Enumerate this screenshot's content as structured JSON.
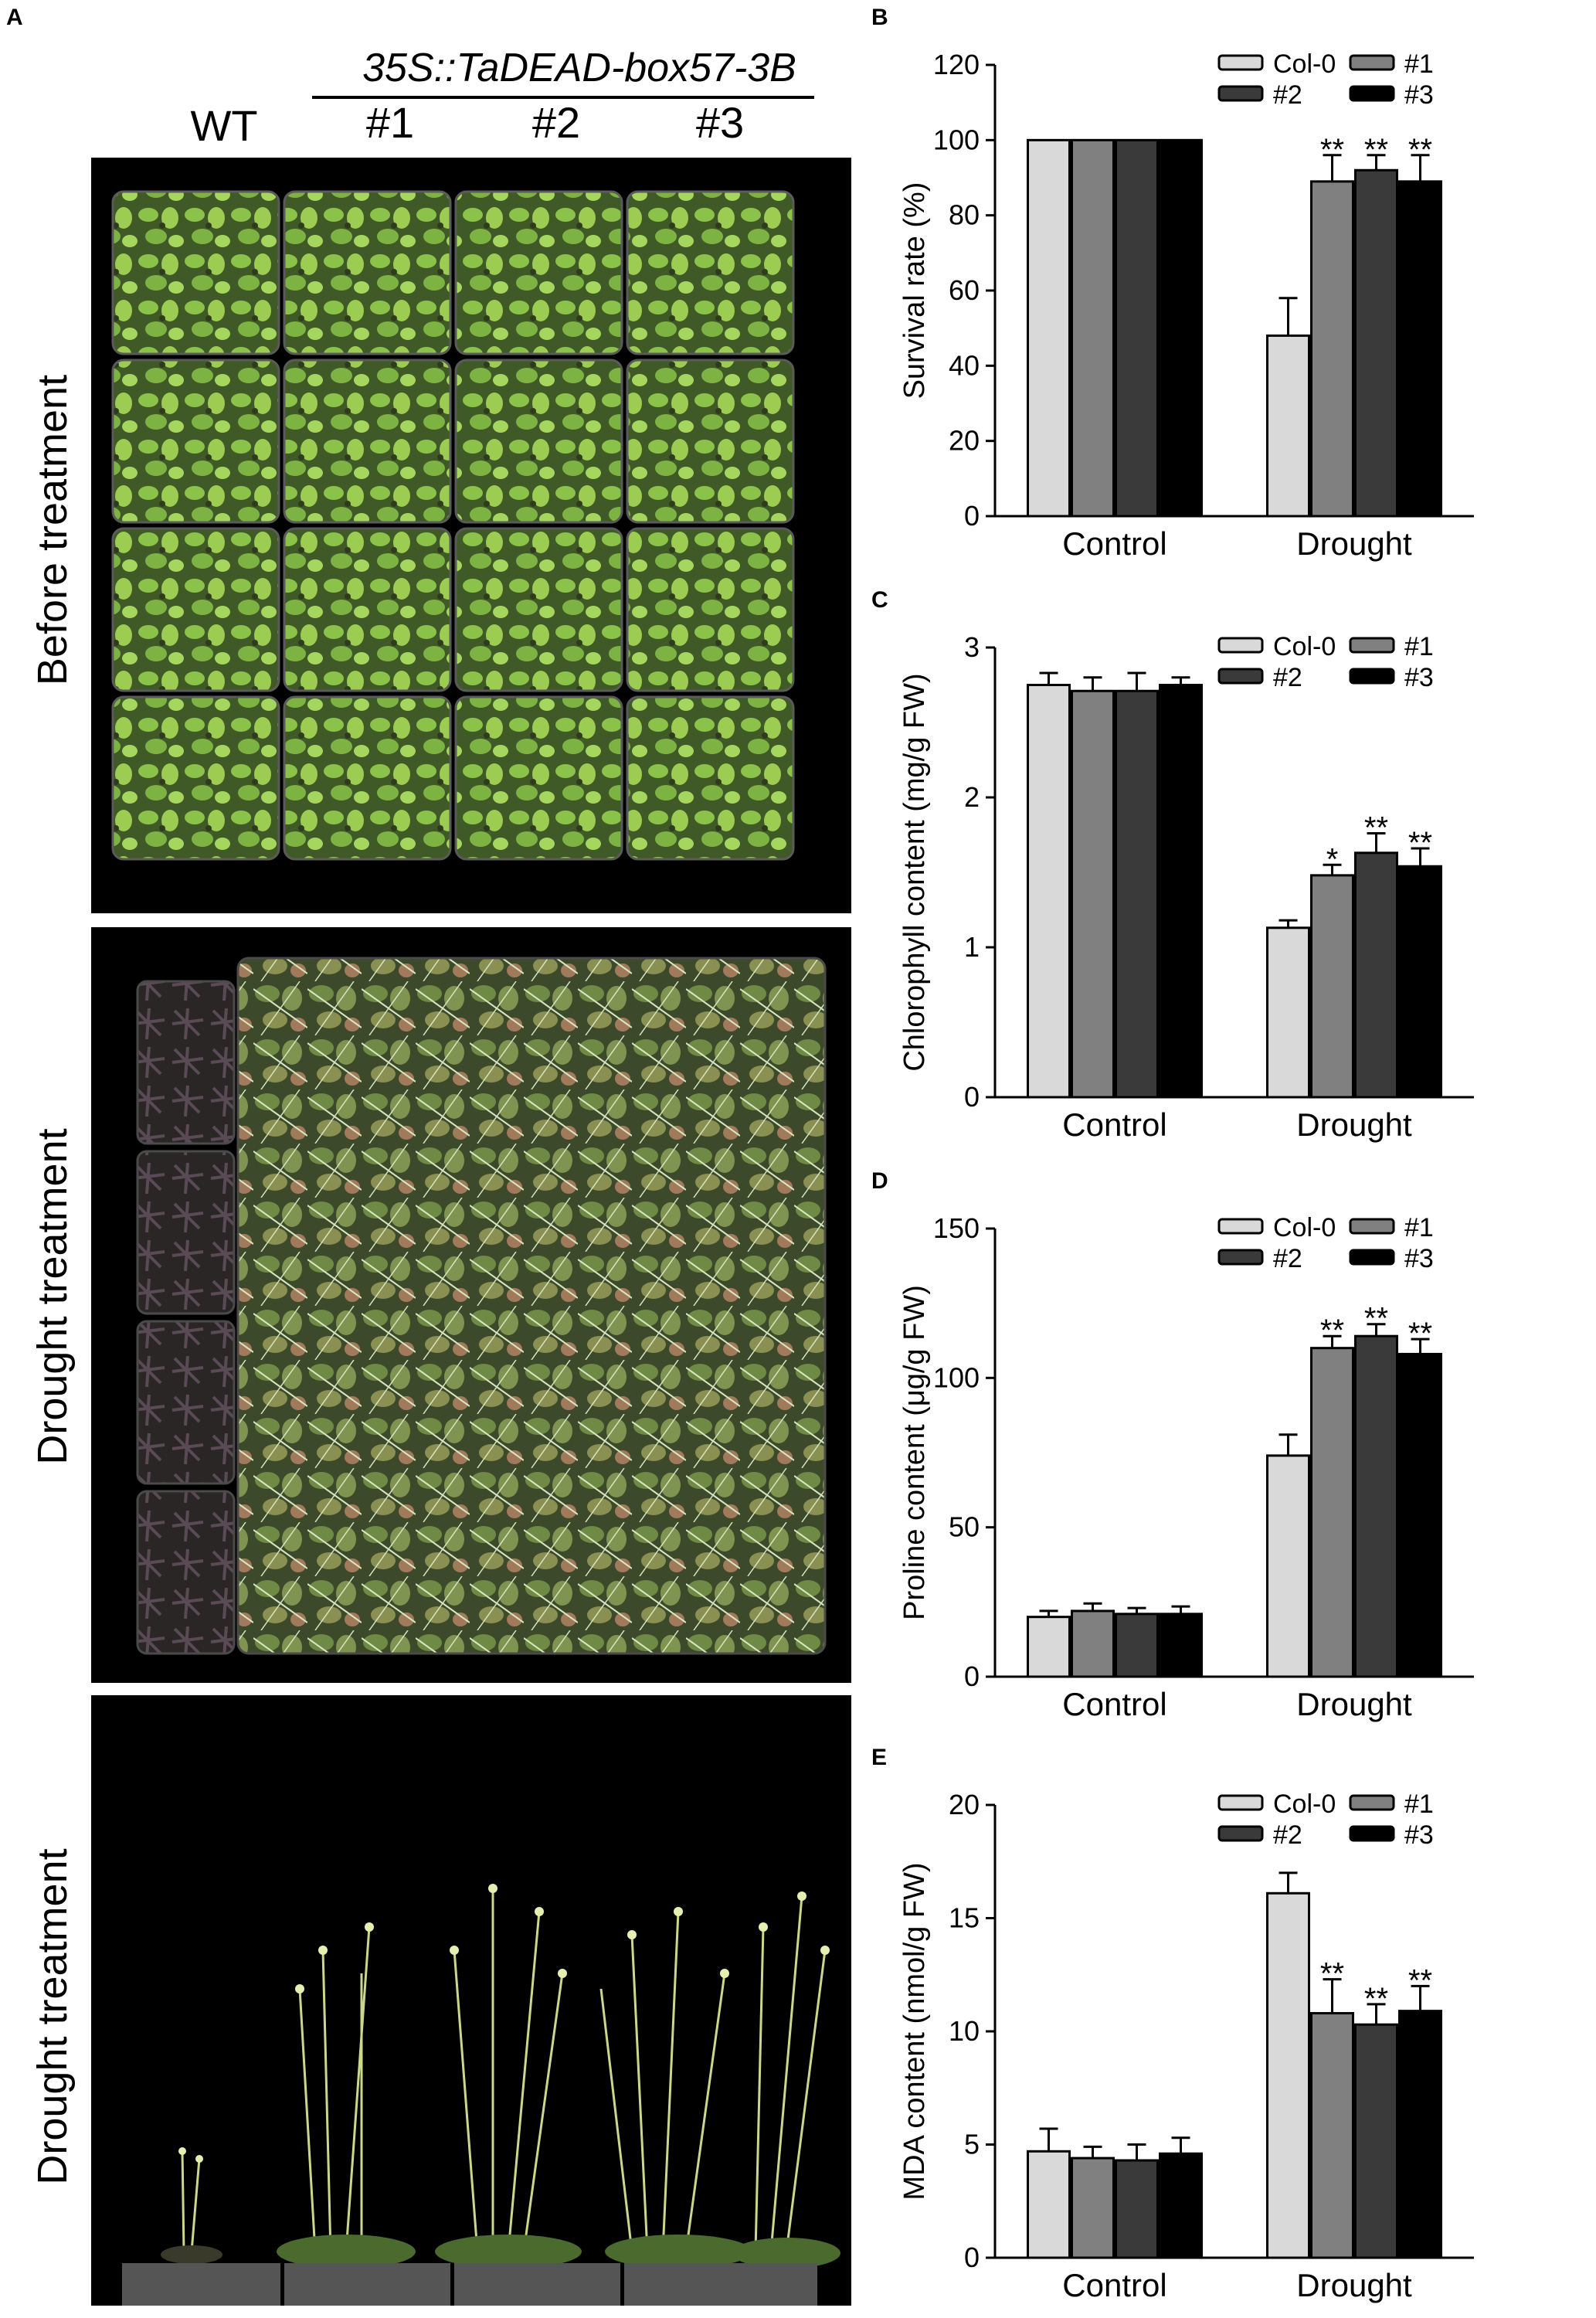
{
  "panel_a": {
    "letter": "A",
    "construct_label": "35S::TaDEAD-box57-3B",
    "columns": [
      "WT",
      "#1",
      "#2",
      "#3"
    ],
    "rows": [
      "Before treatment",
      "Drought treatment",
      "Drought treatment"
    ]
  },
  "chart_data": [
    {
      "panel": "B",
      "type": "bar",
      "categories": [
        "Control",
        "Drought"
      ],
      "ylabel": "Survival rate (%)",
      "ylim": [
        0,
        120
      ],
      "yticks": [
        0,
        20,
        40,
        60,
        80,
        100,
        120
      ],
      "series": [
        {
          "name": "Col-0",
          "color": "#d9d9d9",
          "values": [
            100,
            48
          ],
          "errors": [
            0,
            10
          ]
        },
        {
          "name": "#1",
          "color": "#808080",
          "values": [
            100,
            89
          ],
          "errors": [
            0,
            7
          ]
        },
        {
          "name": "#2",
          "color": "#3a3a3a",
          "values": [
            100,
            92
          ],
          "errors": [
            0,
            4
          ]
        },
        {
          "name": "#3",
          "color": "#000000",
          "values": [
            100,
            89
          ],
          "errors": [
            0,
            7
          ]
        }
      ],
      "significance": [
        [
          "",
          ""
        ],
        [
          "",
          "**"
        ],
        [
          "",
          "**"
        ],
        [
          "",
          "**"
        ]
      ]
    },
    {
      "panel": "C",
      "type": "bar",
      "categories": [
        "Control",
        "Drought"
      ],
      "ylabel": "Chlorophyll content (mg/g FW)",
      "ylim": [
        0,
        3
      ],
      "yticks": [
        0,
        1,
        2,
        3
      ],
      "series": [
        {
          "name": "Col-0",
          "color": "#d9d9d9",
          "values": [
            2.75,
            1.13
          ],
          "errors": [
            0.08,
            0.05
          ]
        },
        {
          "name": "#1",
          "color": "#808080",
          "values": [
            2.71,
            1.48
          ],
          "errors": [
            0.09,
            0.07
          ]
        },
        {
          "name": "#2",
          "color": "#3a3a3a",
          "values": [
            2.71,
            1.63
          ],
          "errors": [
            0.12,
            0.13
          ]
        },
        {
          "name": "#3",
          "color": "#000000",
          "values": [
            2.75,
            1.54
          ],
          "errors": [
            0.05,
            0.12
          ]
        }
      ],
      "significance": [
        [
          "",
          ""
        ],
        [
          "",
          "*"
        ],
        [
          "",
          "**"
        ],
        [
          "",
          "**"
        ]
      ]
    },
    {
      "panel": "D",
      "type": "bar",
      "categories": [
        "Control",
        "Drought"
      ],
      "ylabel": "Proline content (μg/g FW)",
      "ylim": [
        0,
        150
      ],
      "yticks": [
        0,
        50,
        100,
        150
      ],
      "series": [
        {
          "name": "Col-0",
          "color": "#d9d9d9",
          "values": [
            20,
            74
          ],
          "errors": [
            2,
            7
          ]
        },
        {
          "name": "#1",
          "color": "#808080",
          "values": [
            22,
            110
          ],
          "errors": [
            2.5,
            4
          ]
        },
        {
          "name": "#2",
          "color": "#3a3a3a",
          "values": [
            21,
            114
          ],
          "errors": [
            2,
            4
          ]
        },
        {
          "name": "#3",
          "color": "#000000",
          "values": [
            21,
            108
          ],
          "errors": [
            2.5,
            5
          ]
        }
      ],
      "significance": [
        [
          "",
          ""
        ],
        [
          "",
          "**"
        ],
        [
          "",
          "**"
        ],
        [
          "",
          "**"
        ]
      ]
    },
    {
      "panel": "E",
      "type": "bar",
      "categories": [
        "Control",
        "Drought"
      ],
      "ylabel": "MDA content (nmol/g FW)",
      "ylim": [
        0,
        20
      ],
      "yticks": [
        0,
        5,
        10,
        15,
        20
      ],
      "series": [
        {
          "name": "Col-0",
          "color": "#d9d9d9",
          "values": [
            4.7,
            16.1
          ],
          "errors": [
            1.0,
            0.9
          ]
        },
        {
          "name": "#1",
          "color": "#808080",
          "values": [
            4.4,
            10.8
          ],
          "errors": [
            0.5,
            1.5
          ]
        },
        {
          "name": "#2",
          "color": "#3a3a3a",
          "values": [
            4.3,
            10.3
          ],
          "errors": [
            0.7,
            0.9
          ]
        },
        {
          "name": "#3",
          "color": "#000000",
          "values": [
            4.6,
            10.9
          ],
          "errors": [
            0.7,
            1.1
          ]
        }
      ],
      "significance": [
        [
          "",
          ""
        ],
        [
          "",
          "**"
        ],
        [
          "",
          "**"
        ],
        [
          "",
          "**"
        ]
      ]
    }
  ]
}
